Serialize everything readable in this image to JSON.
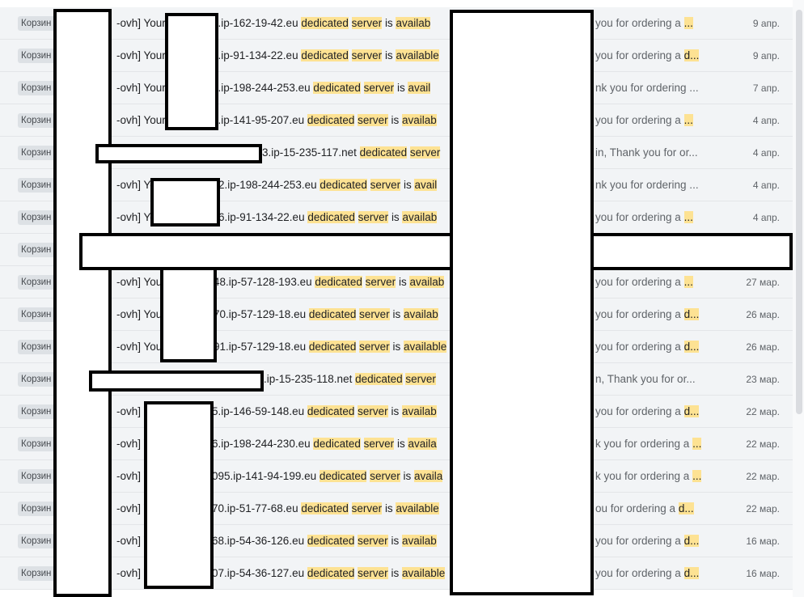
{
  "rows": [
    {
      "badge": "Корзин",
      "lead": "-ovh] Your",
      "host": "0.ip-162-19-42.eu",
      "host_left": 262,
      "w1": "dedicated",
      "w2": "server",
      "link": "is",
      "w3": "availab",
      "snippet": "you for ordering a",
      "hl": "...",
      "date": "9 апр."
    },
    {
      "badge": "Корзин",
      "lead": "-ovh] Your",
      "host": "3.ip-91-134-22.eu",
      "host_left": 262,
      "w1": "dedicated",
      "w2": "server",
      "link": "is",
      "w3": "available",
      "snippet": "you for ordering a",
      "hl": "d...",
      "date": "9 апр."
    },
    {
      "badge": "Корзин",
      "lead": "-ovh] Your",
      "host": "3.ip-198-244-253.eu",
      "host_left": 262,
      "w1": "dedicated",
      "w2": "server",
      "link": "is",
      "w3": "avail",
      "snippet": "nk you for ordering ...",
      "hl": " ",
      "date": "7 апр."
    },
    {
      "badge": "Корзин",
      "lead": "-ovh] Your",
      "host": "3.ip-141-95-207.eu",
      "host_left": 262,
      "w1": "dedicated",
      "w2": "server",
      "link": "is",
      "w3": "availab",
      "snippet": "you for ordering a",
      "hl": "...",
      "date": "4 апр."
    },
    {
      "badge": "Корзин",
      "lead": "",
      "host": "3.ip-15-235-117.net",
      "host_left": 324,
      "w1": "dedicated",
      "w2": "server",
      "link": "",
      "w3": "",
      "snippet": "in, Thank you for or...",
      "hl": "",
      "date": "4 апр."
    },
    {
      "badge": "Корзин",
      "lead": "-ovh] Yo",
      "host": "2.ip-198-244-253.eu",
      "host_left": 270,
      "w1": "dedicated",
      "w2": "server",
      "link": "is",
      "w3": "avail",
      "snippet": "nk you for ordering ...",
      "hl": " ",
      "date": "4 апр."
    },
    {
      "badge": "Корзин",
      "lead": "-ovh] Yo",
      "host": "6.ip-91-134-22.eu",
      "host_left": 270,
      "w1": "dedicated",
      "w2": "server",
      "link": "is",
      "w3": "availab",
      "snippet": "you for ordering a",
      "hl": "...",
      "date": "4 апр."
    },
    {
      "badge": "Корзин",
      "lead": "",
      "host": "",
      "host_left": 0,
      "w1": "",
      "w2": "",
      "link": "",
      "w3": "",
      "snippet": "",
      "hl": "",
      "date": ""
    },
    {
      "badge": "Корзин",
      "lead": "-ovh] You",
      "host": "48.ip-57-128-193.eu",
      "host_left": 264,
      "w1": "dedicated",
      "w2": "server",
      "link": "is",
      "w3": "availab",
      "snippet": "you for ordering a",
      "hl": "...",
      "date": "27 мар."
    },
    {
      "badge": "Корзин",
      "lead": "-ovh] You",
      "host": "70.ip-57-129-18.eu",
      "host_left": 264,
      "w1": "dedicated",
      "w2": "server",
      "link": "is",
      "w3": "availab",
      "snippet": "you for ordering a",
      "hl": "d...",
      "date": "26 мар."
    },
    {
      "badge": "Корзин",
      "lead": "-ovh] You",
      "host": "91.ip-57-129-18.eu",
      "host_left": 264,
      "w1": "dedicated",
      "w2": "server",
      "link": "is",
      "w3": "available",
      "snippet": "you for ordering a",
      "hl": "d...",
      "date": "26 мар."
    },
    {
      "badge": "Корзин",
      "lead": "",
      "host": ".ip-15-235-118.net",
      "host_left": 326,
      "w1": "dedicated",
      "w2": "server",
      "link": "",
      "w3": "",
      "snippet": "n, Thank you for or...",
      "hl": "",
      "date": "23 мар."
    },
    {
      "badge": "Корзин",
      "lead": "-ovh] Y",
      "host": "5.ip-146-59-148.eu",
      "host_left": 262,
      "w1": "dedicated",
      "w2": "server",
      "link": "is",
      "w3": "availab",
      "snippet": "you for ordering a",
      "hl": "d...",
      "date": "22 мар."
    },
    {
      "badge": "Корзин",
      "lead": "-ovh] Y",
      "host": "6.ip-198-244-230.eu",
      "host_left": 262,
      "w1": "dedicated",
      "w2": "server",
      "link": "is",
      "w3": "availa",
      "snippet": "k you for ordering a",
      "hl": "...",
      "date": "22 мар."
    },
    {
      "badge": "Корзин",
      "lead": "-ovh] Y",
      "host": "095.ip-141-94-199.eu",
      "host_left": 262,
      "w1": "dedicated",
      "w2": "server",
      "link": "is",
      "w3": "availa",
      "snippet": "k you for ordering a",
      "hl": "...",
      "date": "22 мар."
    },
    {
      "badge": "Корзин",
      "lead": "-ovh] Y",
      "host": "70.ip-51-77-68.eu",
      "host_left": 262,
      "w1": "dedicated",
      "w2": "server",
      "link": "is",
      "w3": "available",
      "snippet": "ou for ordering a",
      "hl": "d...",
      "date": "22 мар."
    },
    {
      "badge": "Корзин",
      "lead": "-ovh] Y",
      "host": "68.ip-54-36-126.eu",
      "host_left": 262,
      "w1": "dedicated",
      "w2": "server",
      "link": "is",
      "w3": "availab",
      "snippet": "you for ordering a",
      "hl": "d...",
      "date": "16 мар."
    },
    {
      "badge": "Корзин",
      "lead": "-ovh] Y",
      "host": "07.ip-54-36-127.eu",
      "host_left": 262,
      "w1": "dedicated",
      "w2": "server",
      "link": "is",
      "w3": "available",
      "snippet": "you for ordering a",
      "hl": "d...",
      "date": "16 мар."
    }
  ]
}
